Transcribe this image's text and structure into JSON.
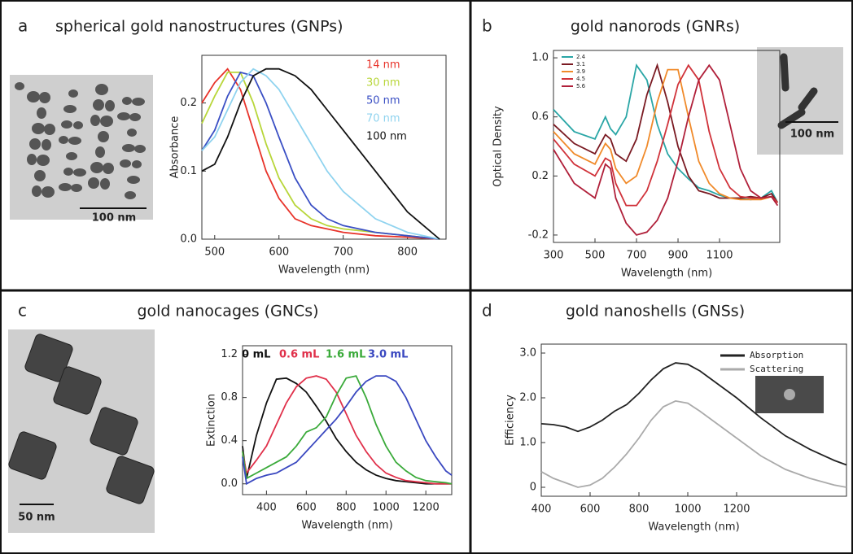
{
  "chart_data": [
    {
      "type": "line",
      "panel": "a",
      "title": "spherical gold nanostructures (GNPs)",
      "x_label": "Wavelength (nm)",
      "y_label": "Absorbance",
      "scale_bar": "100 nm",
      "xlim": [
        480,
        860
      ],
      "xticks": [
        500,
        600,
        700,
        800
      ],
      "ylim": [
        0,
        0.27
      ],
      "yticks": [
        {
          "value": 0,
          "label": "0.0"
        },
        0.1,
        0.2
      ],
      "x": [
        480,
        500,
        520,
        540,
        560,
        580,
        600,
        625,
        650,
        675,
        700,
        750,
        800,
        850
      ],
      "series": [
        {
          "name": "14 nm",
          "color": "#e8332a",
          "values": [
            0.2,
            0.23,
            0.25,
            0.22,
            0.16,
            0.1,
            0.06,
            0.03,
            0.02,
            0.015,
            0.01,
            0.005,
            0.003,
            0
          ]
        },
        {
          "name": "30 nm",
          "color": "#b8d63a",
          "values": [
            0.17,
            0.21,
            0.245,
            0.245,
            0.2,
            0.14,
            0.09,
            0.05,
            0.03,
            0.02,
            0.015,
            0.01,
            0.005,
            0
          ]
        },
        {
          "name": "50 nm",
          "color": "#3a4fc4",
          "values": [
            0.13,
            0.16,
            0.21,
            0.245,
            0.24,
            0.2,
            0.15,
            0.09,
            0.05,
            0.03,
            0.02,
            0.01,
            0.005,
            0
          ]
        },
        {
          "name": "70 nm",
          "color": "#8fd3ef",
          "values": [
            0.13,
            0.15,
            0.19,
            0.23,
            0.25,
            0.24,
            0.22,
            0.18,
            0.14,
            0.1,
            0.07,
            0.03,
            0.01,
            0
          ]
        },
        {
          "name": "100 nm",
          "color": "#111111",
          "values": [
            0.1,
            0.11,
            0.15,
            0.2,
            0.24,
            0.25,
            0.25,
            0.24,
            0.22,
            0.19,
            0.16,
            0.1,
            0.04,
            0
          ]
        }
      ]
    },
    {
      "type": "line",
      "panel": "b",
      "title": "gold nanorods (GNRs)",
      "x_label": "Wavelength (nm)",
      "y_label": "Optical Density",
      "scale_bar": "100 nm",
      "xlim": [
        300,
        1390
      ],
      "xticks": [
        300,
        500,
        700,
        900,
        1100
      ],
      "ylim": [
        -0.25,
        1.05
      ],
      "yticks": [
        -0.2,
        0.2,
        0.6,
        {
          "value": 1,
          "label": "1.0"
        }
      ],
      "x": [
        300,
        400,
        500,
        550,
        575,
        600,
        650,
        700,
        750,
        800,
        850,
        900,
        950,
        1000,
        1050,
        1100,
        1150,
        1200,
        1250,
        1300,
        1350,
        1380
      ],
      "series": [
        {
          "name": "2.4",
          "color": "#2aa6a6",
          "values": [
            0.65,
            0.5,
            0.45,
            0.6,
            0.52,
            0.48,
            0.6,
            0.95,
            0.85,
            0.55,
            0.35,
            0.25,
            0.18,
            0.12,
            0.1,
            0.07,
            0.05,
            0.05,
            0.04,
            0.05,
            0.1,
            0.02
          ]
        },
        {
          "name": "3.1",
          "color": "#7a1a22",
          "values": [
            0.55,
            0.42,
            0.35,
            0.48,
            0.45,
            0.35,
            0.3,
            0.45,
            0.75,
            0.95,
            0.7,
            0.4,
            0.2,
            0.1,
            0.08,
            0.05,
            0.05,
            0.05,
            0.06,
            0.05,
            0.08,
            0.02
          ]
        },
        {
          "name": "3.9",
          "color": "#f08a2a",
          "values": [
            0.5,
            0.35,
            0.28,
            0.42,
            0.38,
            0.25,
            0.15,
            0.2,
            0.4,
            0.7,
            0.92,
            0.92,
            0.6,
            0.3,
            0.15,
            0.08,
            0.05,
            0.04,
            0.04,
            0.04,
            0.06,
            0.02
          ]
        },
        {
          "name": "4.5",
          "color": "#d0323a",
          "values": [
            0.45,
            0.28,
            0.2,
            0.32,
            0.3,
            0.15,
            0,
            0,
            0.1,
            0.3,
            0.55,
            0.82,
            0.95,
            0.85,
            0.5,
            0.25,
            0.12,
            0.06,
            0.05,
            0.05,
            0.06,
            0.02
          ]
        },
        {
          "name": "5.6",
          "color": "#b0203a",
          "values": [
            0.38,
            0.15,
            0.05,
            0.28,
            0.25,
            0.05,
            -0.12,
            -0.2,
            -0.18,
            -0.1,
            0.05,
            0.3,
            0.6,
            0.85,
            0.95,
            0.85,
            0.55,
            0.25,
            0.1,
            0.05,
            0.06,
            0
          ]
        }
      ]
    },
    {
      "type": "line",
      "panel": "c",
      "title": "gold nanocages (GNCs)",
      "x_label": "Wavelength (nm)",
      "y_label": "Extinction",
      "scale_bar": "50 nm",
      "xlim": [
        280,
        1330
      ],
      "xticks": [
        400,
        600,
        800,
        1000,
        1200
      ],
      "ylim": [
        -0.1,
        1.28
      ],
      "yticks": [
        {
          "value": 0,
          "label": "0.0"
        },
        0.4,
        0.8,
        1.2
      ],
      "x": [
        280,
        300,
        350,
        400,
        450,
        500,
        550,
        600,
        650,
        700,
        750,
        800,
        850,
        900,
        950,
        1000,
        1050,
        1100,
        1150,
        1200,
        1250,
        1300,
        1330
      ],
      "series": [
        {
          "name": "0 mL",
          "color": "#111111",
          "values": [
            0.35,
            0.05,
            0.45,
            0.75,
            0.97,
            0.98,
            0.93,
            0.85,
            0.72,
            0.58,
            0.42,
            0.3,
            0.2,
            0.13,
            0.08,
            0.05,
            0.03,
            0.02,
            0.01,
            0,
            0,
            0,
            0
          ]
        },
        {
          "name": "0.6 mL",
          "color": "#e0304a",
          "values": [
            0.3,
            0.1,
            0.22,
            0.35,
            0.55,
            0.75,
            0.9,
            0.98,
            1,
            0.97,
            0.85,
            0.65,
            0.45,
            0.3,
            0.18,
            0.1,
            0.06,
            0.03,
            0.02,
            0.01,
            0,
            0,
            0
          ]
        },
        {
          "name": "1.6 mL",
          "color": "#3aaa3a",
          "values": [
            0.3,
            0.05,
            0.1,
            0.15,
            0.2,
            0.25,
            0.35,
            0.48,
            0.52,
            0.62,
            0.82,
            0.98,
            1,
            0.8,
            0.55,
            0.35,
            0.2,
            0.12,
            0.06,
            0.03,
            0.02,
            0.01,
            0
          ]
        },
        {
          "name": "3.0 mL",
          "color": "#3a48c0",
          "values": [
            0.25,
            0,
            0.05,
            0.08,
            0.1,
            0.15,
            0.2,
            0.3,
            0.4,
            0.5,
            0.6,
            0.72,
            0.85,
            0.95,
            1,
            1,
            0.95,
            0.8,
            0.6,
            0.4,
            0.25,
            0.12,
            0.08
          ]
        }
      ]
    },
    {
      "type": "line",
      "panel": "d",
      "title": "gold nanoshells (GNSs)",
      "x_label": "Wavelength (nm)",
      "y_label": "Efficiency",
      "xlim": [
        400,
        1650
      ],
      "xticks": [
        400,
        600,
        800,
        1000,
        1200
      ],
      "ylim": [
        -0.2,
        3.2
      ],
      "yticks": [
        0,
        {
          "value": 1,
          "label": "1.0"
        },
        {
          "value": 2,
          "label": "2.0"
        },
        {
          "value": 3,
          "label": "3.0"
        }
      ],
      "x": [
        400,
        450,
        500,
        550,
        600,
        650,
        700,
        750,
        800,
        850,
        900,
        950,
        1000,
        1050,
        1100,
        1200,
        1300,
        1400,
        1500,
        1600,
        1650
      ],
      "series": [
        {
          "name": "Absorption",
          "color": "#222222",
          "values": [
            1.42,
            1.4,
            1.35,
            1.25,
            1.35,
            1.5,
            1.7,
            1.85,
            2.1,
            2.4,
            2.65,
            2.78,
            2.75,
            2.6,
            2.4,
            2,
            1.55,
            1.15,
            0.85,
            0.6,
            0.5
          ]
        },
        {
          "name": "Scattering",
          "color": "#aaaaaa",
          "values": [
            0.35,
            0.2,
            0.1,
            0,
            0.05,
            0.2,
            0.45,
            0.75,
            1.1,
            1.5,
            1.8,
            1.93,
            1.88,
            1.7,
            1.5,
            1.1,
            0.7,
            0.4,
            0.2,
            0.05,
            0
          ]
        }
      ]
    }
  ]
}
